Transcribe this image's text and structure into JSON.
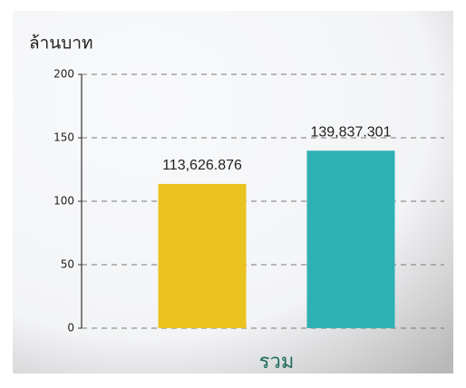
{
  "chart_data": {
    "type": "bar",
    "y_axis_label": "ล้านบาท",
    "categories": [
      "รวม"
    ],
    "series": [
      {
        "color": "#ebc31f",
        "values": [
          113.626876
        ],
        "value_labels": [
          "113,626.876"
        ]
      },
      {
        "color": "#2fb1b3",
        "values": [
          139.837301
        ],
        "value_labels": [
          "139,837.301"
        ]
      }
    ],
    "ylim": [
      0,
      200
    ],
    "yticks": [
      0,
      50,
      100,
      150,
      200
    ],
    "grid": true
  }
}
